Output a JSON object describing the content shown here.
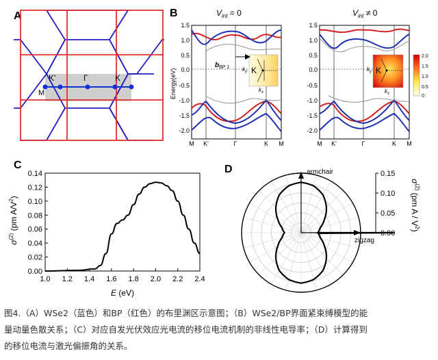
{
  "figure": {
    "panel_a": {
      "label": "A",
      "points": {
        "k_prime": "K'",
        "gamma": "Γ",
        "k": "K",
        "m": "M"
      },
      "colors": {
        "wse2": "#2020c0",
        "bp": "#e03030",
        "zone": "#cfcfcf",
        "point": "#1030d0"
      }
    },
    "panel_b": {
      "label": "B",
      "titles": [
        "V",
        "int",
        " = 0",
        " ≠ 0"
      ],
      "ylabel": "Energy(eV)",
      "yticks": [
        "1.5",
        "1.0",
        "0.5",
        "0.0",
        "-0.5",
        "-1.0",
        "-1.5",
        "-2.0"
      ],
      "xticks": [
        "M",
        "K'",
        "Γ",
        "K",
        "M"
      ],
      "inset": {
        "b": "b",
        "bsub": "BP 1",
        "K": "K",
        "ky": "k",
        "kx": "k",
        "ysub": "y",
        "xsub": "x"
      },
      "colorbar_ticks": [
        "2.0",
        "1.5",
        "1.0",
        "0.5",
        "0"
      ],
      "colors": {
        "wse2": "#1f2fb0",
        "bp": "#d02020",
        "ghost": "#9090a0"
      }
    },
    "panel_c": {
      "label": "C",
      "ylabel_main": "σ",
      "ylabel_sup": "(2)",
      "ylabel_unit": " (pm A/V",
      "ylabel_sup2": "2",
      "ylabel_close": ")",
      "xlabel": "E",
      "xunit": " (eV)"
    },
    "panel_d": {
      "label": "D",
      "axis_top": "armchair",
      "axis_right": "zigzag",
      "ticks": [
        "0.15",
        "0.10",
        "0.05",
        "0.00"
      ],
      "ylabel": "σ",
      "ylabel_sup": "(2)",
      "ylabel_rest": " (pm A / V",
      "ylabel_sup2": "2",
      "ylabel_close": ")"
    }
  },
  "caption": {
    "lines": [
      "图4.（A）WSe2（蓝色）和BP（红色）的布里渊区示意图；（B）WSe2/BP界面紧束缚模型的能",
      "量动量色散关系；（C）对应自发光伏效应光电流的移位电流机制的非线性电导率；（D）计算得到",
      "的移位电流与激光偏振角的关系。"
    ]
  },
  "chart_data": [
    {
      "type": "line",
      "panel": "C",
      "title": "",
      "xlabel": "E (eV)",
      "ylabel": "σ(2) (pm A/V2)",
      "xlim": [
        1.0,
        2.4
      ],
      "ylim": [
        0.0,
        0.14
      ],
      "xticks": [
        1.0,
        1.2,
        1.4,
        1.6,
        1.8,
        2.0,
        2.2,
        2.4
      ],
      "yticks": [
        0.0,
        0.02,
        0.04,
        0.06,
        0.08,
        0.1,
        0.12,
        0.14
      ],
      "x": [
        1.0,
        1.3,
        1.45,
        1.5,
        1.55,
        1.6,
        1.65,
        1.7,
        1.75,
        1.8,
        1.85,
        1.9,
        1.95,
        2.0,
        2.05,
        2.1,
        2.15,
        2.2,
        2.25,
        2.3,
        2.35,
        2.4
      ],
      "y": [
        0.0,
        0.001,
        0.003,
        0.008,
        0.025,
        0.053,
        0.068,
        0.073,
        0.08,
        0.095,
        0.11,
        0.12,
        0.125,
        0.127,
        0.126,
        0.122,
        0.115,
        0.1,
        0.08,
        0.06,
        0.04,
        0.025
      ]
    },
    {
      "type": "polar",
      "panel": "D",
      "rlim": [
        0.0,
        0.15
      ],
      "rticks": [
        0.0,
        0.05,
        0.1,
        0.15
      ],
      "angle_deg": [
        0,
        15,
        30,
        45,
        60,
        75,
        90,
        105,
        120,
        135,
        150,
        165,
        180,
        195,
        210,
        225,
        240,
        255,
        270,
        285,
        300,
        315,
        330,
        345
      ],
      "r": [
        0.042,
        0.05,
        0.068,
        0.09,
        0.11,
        0.122,
        0.127,
        0.122,
        0.11,
        0.09,
        0.068,
        0.05,
        0.042,
        0.05,
        0.068,
        0.09,
        0.11,
        0.122,
        0.127,
        0.122,
        0.11,
        0.09,
        0.068,
        0.05
      ]
    }
  ]
}
